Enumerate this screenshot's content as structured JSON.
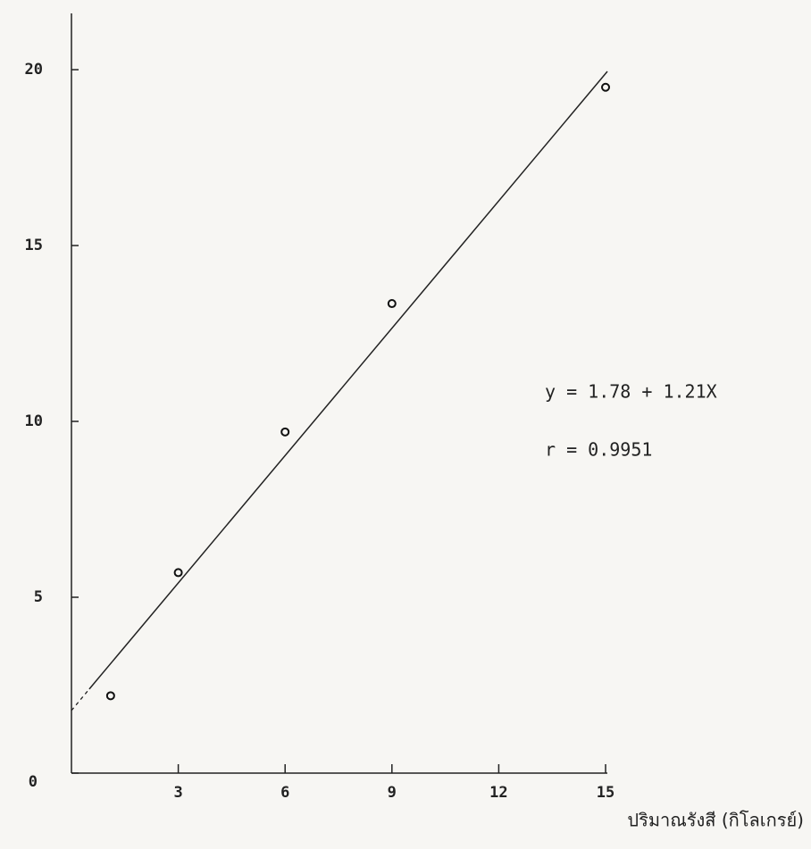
{
  "chart_data": {
    "type": "scatter",
    "x_label": "ปริมาณรังสี (กิโลเกรย์)",
    "annotations": [
      "y = 1.78 + 1.21X",
      "r = 0.9951"
    ],
    "x": [
      1.1,
      3,
      6,
      9,
      15
    ],
    "values": [
      2.2,
      5.7,
      9.7,
      13.35,
      19.5
    ],
    "color": "#111111",
    "fit_line": {
      "x": [
        0.5,
        15.05
      ],
      "y": [
        2.39,
        19.95
      ],
      "extension_x": [
        0,
        0.5
      ],
      "extension_y": [
        1.78,
        2.39
      ]
    },
    "xlim": [
      0,
      15.05
    ],
    "ylim": [
      0,
      21.6
    ],
    "xticks": [
      3,
      6,
      9,
      12,
      15
    ],
    "yticks": [
      0,
      5,
      10,
      15,
      20
    ],
    "grid": false
  }
}
